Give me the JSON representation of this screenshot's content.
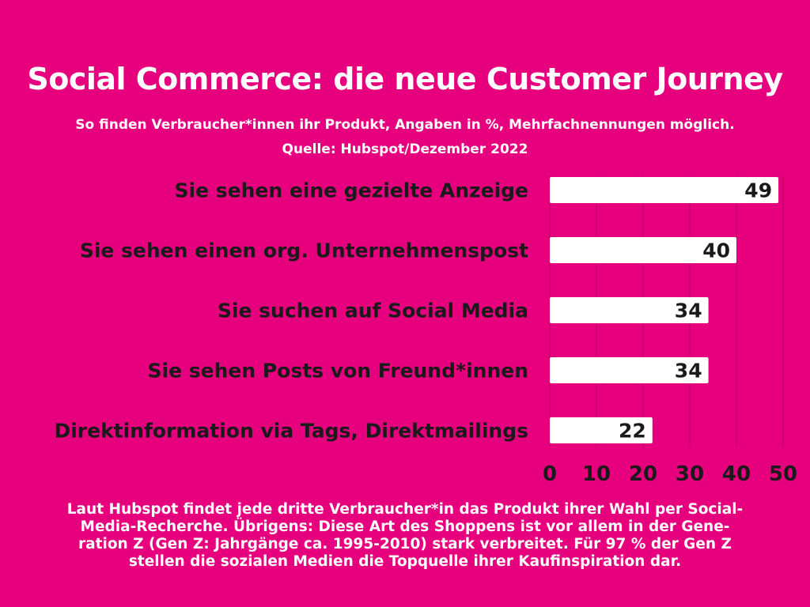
{
  "colors": {
    "background": "#e6007e",
    "bar": "#ffffff",
    "label": "#1a1a1a",
    "text_light": "#ffffff"
  },
  "header": {
    "title": "Social Commerce: die neue Customer Journey",
    "subtitle": "So finden Verbraucher*innen ihr Produkt, Angaben in %, Mehrfachnennungen möglich.",
    "source": "Quelle: Hubspot/Dezember 2022"
  },
  "chart_data": {
    "type": "bar",
    "orientation": "horizontal",
    "categories": [
      "Sie sehen eine gezielte Anzeige",
      "Sie sehen einen org. Unternehmenspost",
      "Sie suchen auf Social Media",
      "Sie sehen Posts von Freund*innen",
      "Direktinformation via Tags, Direktmailings"
    ],
    "values": [
      49,
      40,
      34,
      34,
      22
    ],
    "xlim": [
      0,
      50
    ],
    "xticks": [
      0,
      10,
      20,
      30,
      40,
      50
    ],
    "grid": true,
    "data_labels": true
  },
  "footer": {
    "lines": [
      "Laut Hubspot findet jede dritte Verbraucher*in das Produkt ihrer Wahl per Social-",
      "Media-Recherche. Übrigens: Diese Art des Shoppens ist vor allem in der Gene-",
      "ration Z (Gen Z: Jahrgänge ca. 1995-2010) stark verbreitet. Für 97 % der Gen Z",
      "stellen die sozialen Medien die Topquelle ihrer Kaufinspiration dar."
    ]
  }
}
